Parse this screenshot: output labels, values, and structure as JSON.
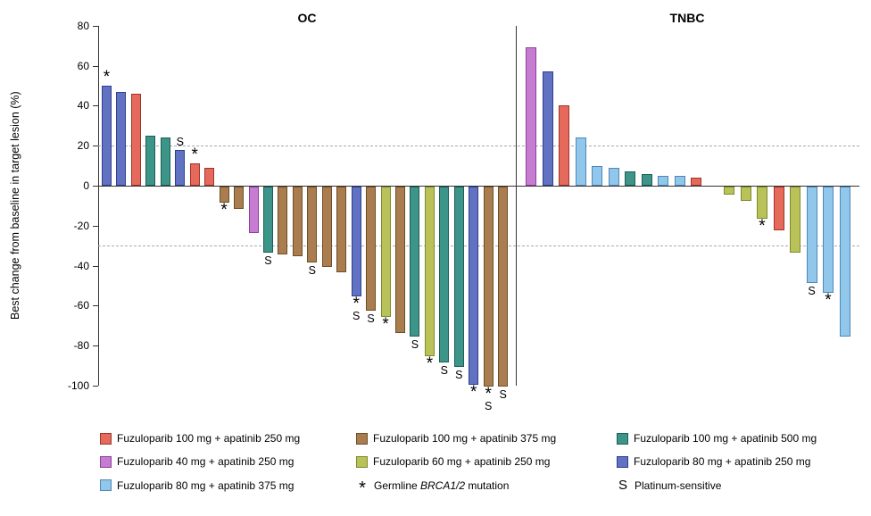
{
  "chart_data": {
    "type": "bar",
    "title": "",
    "ylabel": "Best change from baseline in target lesion (%)",
    "ylim": [
      -100,
      80
    ],
    "yticks": [
      80,
      60,
      40,
      20,
      0,
      -20,
      -40,
      -60,
      -80,
      -100
    ],
    "reference_lines": {
      "upper": 20,
      "lower": -30
    },
    "grid": false,
    "legend_position": "bottom",
    "symbols": {
      "brca": "*",
      "platinum": "S"
    },
    "groups": [
      {
        "name": "OC",
        "bars": [
          {
            "value": 50,
            "treatment": "fuzu80_apa250",
            "flags": [
              "brca"
            ]
          },
          {
            "value": 47,
            "treatment": "fuzu80_apa250"
          },
          {
            "value": 46,
            "treatment": "fuzu100_apa250"
          },
          {
            "value": 25,
            "treatment": "fuzu100_apa500"
          },
          {
            "value": 24,
            "treatment": "fuzu100_apa500"
          },
          {
            "value": 18,
            "treatment": "fuzu80_apa250",
            "flags": [
              "platinum"
            ]
          },
          {
            "value": 11,
            "treatment": "fuzu100_apa250",
            "flags": [
              "brca"
            ]
          },
          {
            "value": 9,
            "treatment": "fuzu100_apa250"
          },
          {
            "value": -8,
            "treatment": "fuzu100_apa375",
            "flags": [
              "brca"
            ]
          },
          {
            "value": -11,
            "treatment": "fuzu100_apa375"
          },
          {
            "value": -23,
            "treatment": "fuzu40_apa250"
          },
          {
            "value": -33,
            "treatment": "fuzu100_apa500",
            "flags": [
              "platinum"
            ]
          },
          {
            "value": -34,
            "treatment": "fuzu100_apa375"
          },
          {
            "value": -35,
            "treatment": "fuzu100_apa375"
          },
          {
            "value": -38,
            "treatment": "fuzu100_apa375",
            "flags": [
              "platinum"
            ]
          },
          {
            "value": -40,
            "treatment": "fuzu100_apa375"
          },
          {
            "value": -43,
            "treatment": "fuzu100_apa375"
          },
          {
            "value": -55,
            "treatment": "fuzu80_apa250",
            "flags": [
              "brca",
              "platinum"
            ]
          },
          {
            "value": -62,
            "treatment": "fuzu100_apa375",
            "flags": [
              "platinum"
            ]
          },
          {
            "value": -65,
            "treatment": "fuzu60_apa250",
            "flags": [
              "brca"
            ]
          },
          {
            "value": -73,
            "treatment": "fuzu100_apa375"
          },
          {
            "value": -75,
            "treatment": "fuzu100_apa500",
            "flags": [
              "platinum"
            ]
          },
          {
            "value": -85,
            "treatment": "fuzu60_apa250",
            "flags": [
              "brca"
            ]
          },
          {
            "value": -88,
            "treatment": "fuzu100_apa500",
            "flags": [
              "platinum"
            ]
          },
          {
            "value": -90,
            "treatment": "fuzu100_apa500",
            "flags": [
              "platinum"
            ]
          },
          {
            "value": -99,
            "treatment": "fuzu80_apa250",
            "flags": [
              "brca"
            ]
          },
          {
            "value": -100,
            "treatment": "fuzu100_apa375",
            "flags": [
              "brca",
              "platinum"
            ]
          },
          {
            "value": -100,
            "treatment": "fuzu100_apa375",
            "flags": [
              "platinum"
            ]
          }
        ]
      },
      {
        "name": "TNBC",
        "gap_after_index": 10,
        "bars": [
          {
            "value": 69,
            "treatment": "fuzu40_apa250"
          },
          {
            "value": 57,
            "treatment": "fuzu80_apa250"
          },
          {
            "value": 40,
            "treatment": "fuzu100_apa250"
          },
          {
            "value": 24,
            "treatment": "fuzu80_apa375"
          },
          {
            "value": 10,
            "treatment": "fuzu80_apa375"
          },
          {
            "value": 9,
            "treatment": "fuzu80_apa375"
          },
          {
            "value": 7,
            "treatment": "fuzu100_apa500"
          },
          {
            "value": 6,
            "treatment": "fuzu100_apa500"
          },
          {
            "value": 5,
            "treatment": "fuzu80_apa375"
          },
          {
            "value": 5,
            "treatment": "fuzu80_apa375"
          },
          {
            "value": 4,
            "treatment": "fuzu100_apa250"
          },
          {
            "value": -4,
            "treatment": "fuzu60_apa250"
          },
          {
            "value": -7,
            "treatment": "fuzu60_apa250"
          },
          {
            "value": -16,
            "treatment": "fuzu60_apa250",
            "flags": [
              "brca"
            ]
          },
          {
            "value": -22,
            "treatment": "fuzu100_apa250"
          },
          {
            "value": -33,
            "treatment": "fuzu60_apa250"
          },
          {
            "value": -48,
            "treatment": "fuzu80_apa375",
            "flags": [
              "platinum"
            ]
          },
          {
            "value": -53,
            "treatment": "fuzu80_apa375",
            "flags": [
              "brca"
            ]
          },
          {
            "value": -75,
            "treatment": "fuzu80_apa375"
          }
        ]
      }
    ],
    "treatments": {
      "fuzu100_apa250": {
        "label": "Fuzuloparib 100 mg + apatinib 250 mg",
        "fill": "#E56A5B",
        "border": "#A03428"
      },
      "fuzu100_apa375": {
        "label": "Fuzuloparib 100 mg + apatinib 375 mg",
        "fill": "#A97D50",
        "border": "#6F4E23"
      },
      "fuzu100_apa500": {
        "label": "Fuzuloparib 100 mg + apatinib 500 mg",
        "fill": "#3D9488",
        "border": "#1C5F55"
      },
      "fuzu40_apa250": {
        "label": "Fuzuloparib 40 mg + apatinib 250 mg",
        "fill": "#C67CD0",
        "border": "#8F3F9E"
      },
      "fuzu60_apa250": {
        "label": "Fuzuloparib 60 mg + apatinib 250 mg",
        "fill": "#B9C159",
        "border": "#7F8A2E"
      },
      "fuzu80_apa250": {
        "label": "Fuzuloparib 80 mg + apatinib 250 mg",
        "fill": "#6272C3",
        "border": "#2F3F8F"
      },
      "fuzu80_apa375": {
        "label": "Fuzuloparib 80 mg + apatinib 375 mg",
        "fill": "#92C7EC",
        "border": "#4E86B8"
      }
    },
    "legend": {
      "order": [
        "fuzu100_apa250",
        "fuzu100_apa375",
        "fuzu100_apa500",
        "fuzu40_apa250",
        "fuzu60_apa250",
        "fuzu80_apa250",
        "fuzu80_apa375"
      ],
      "brca_note": {
        "symbol": "*",
        "prefix": "Germline ",
        "italic": "BRCA1/2",
        "suffix": " mutation"
      },
      "platinum_note": {
        "symbol": "S",
        "label": "Platinum-sensitive"
      }
    }
  }
}
